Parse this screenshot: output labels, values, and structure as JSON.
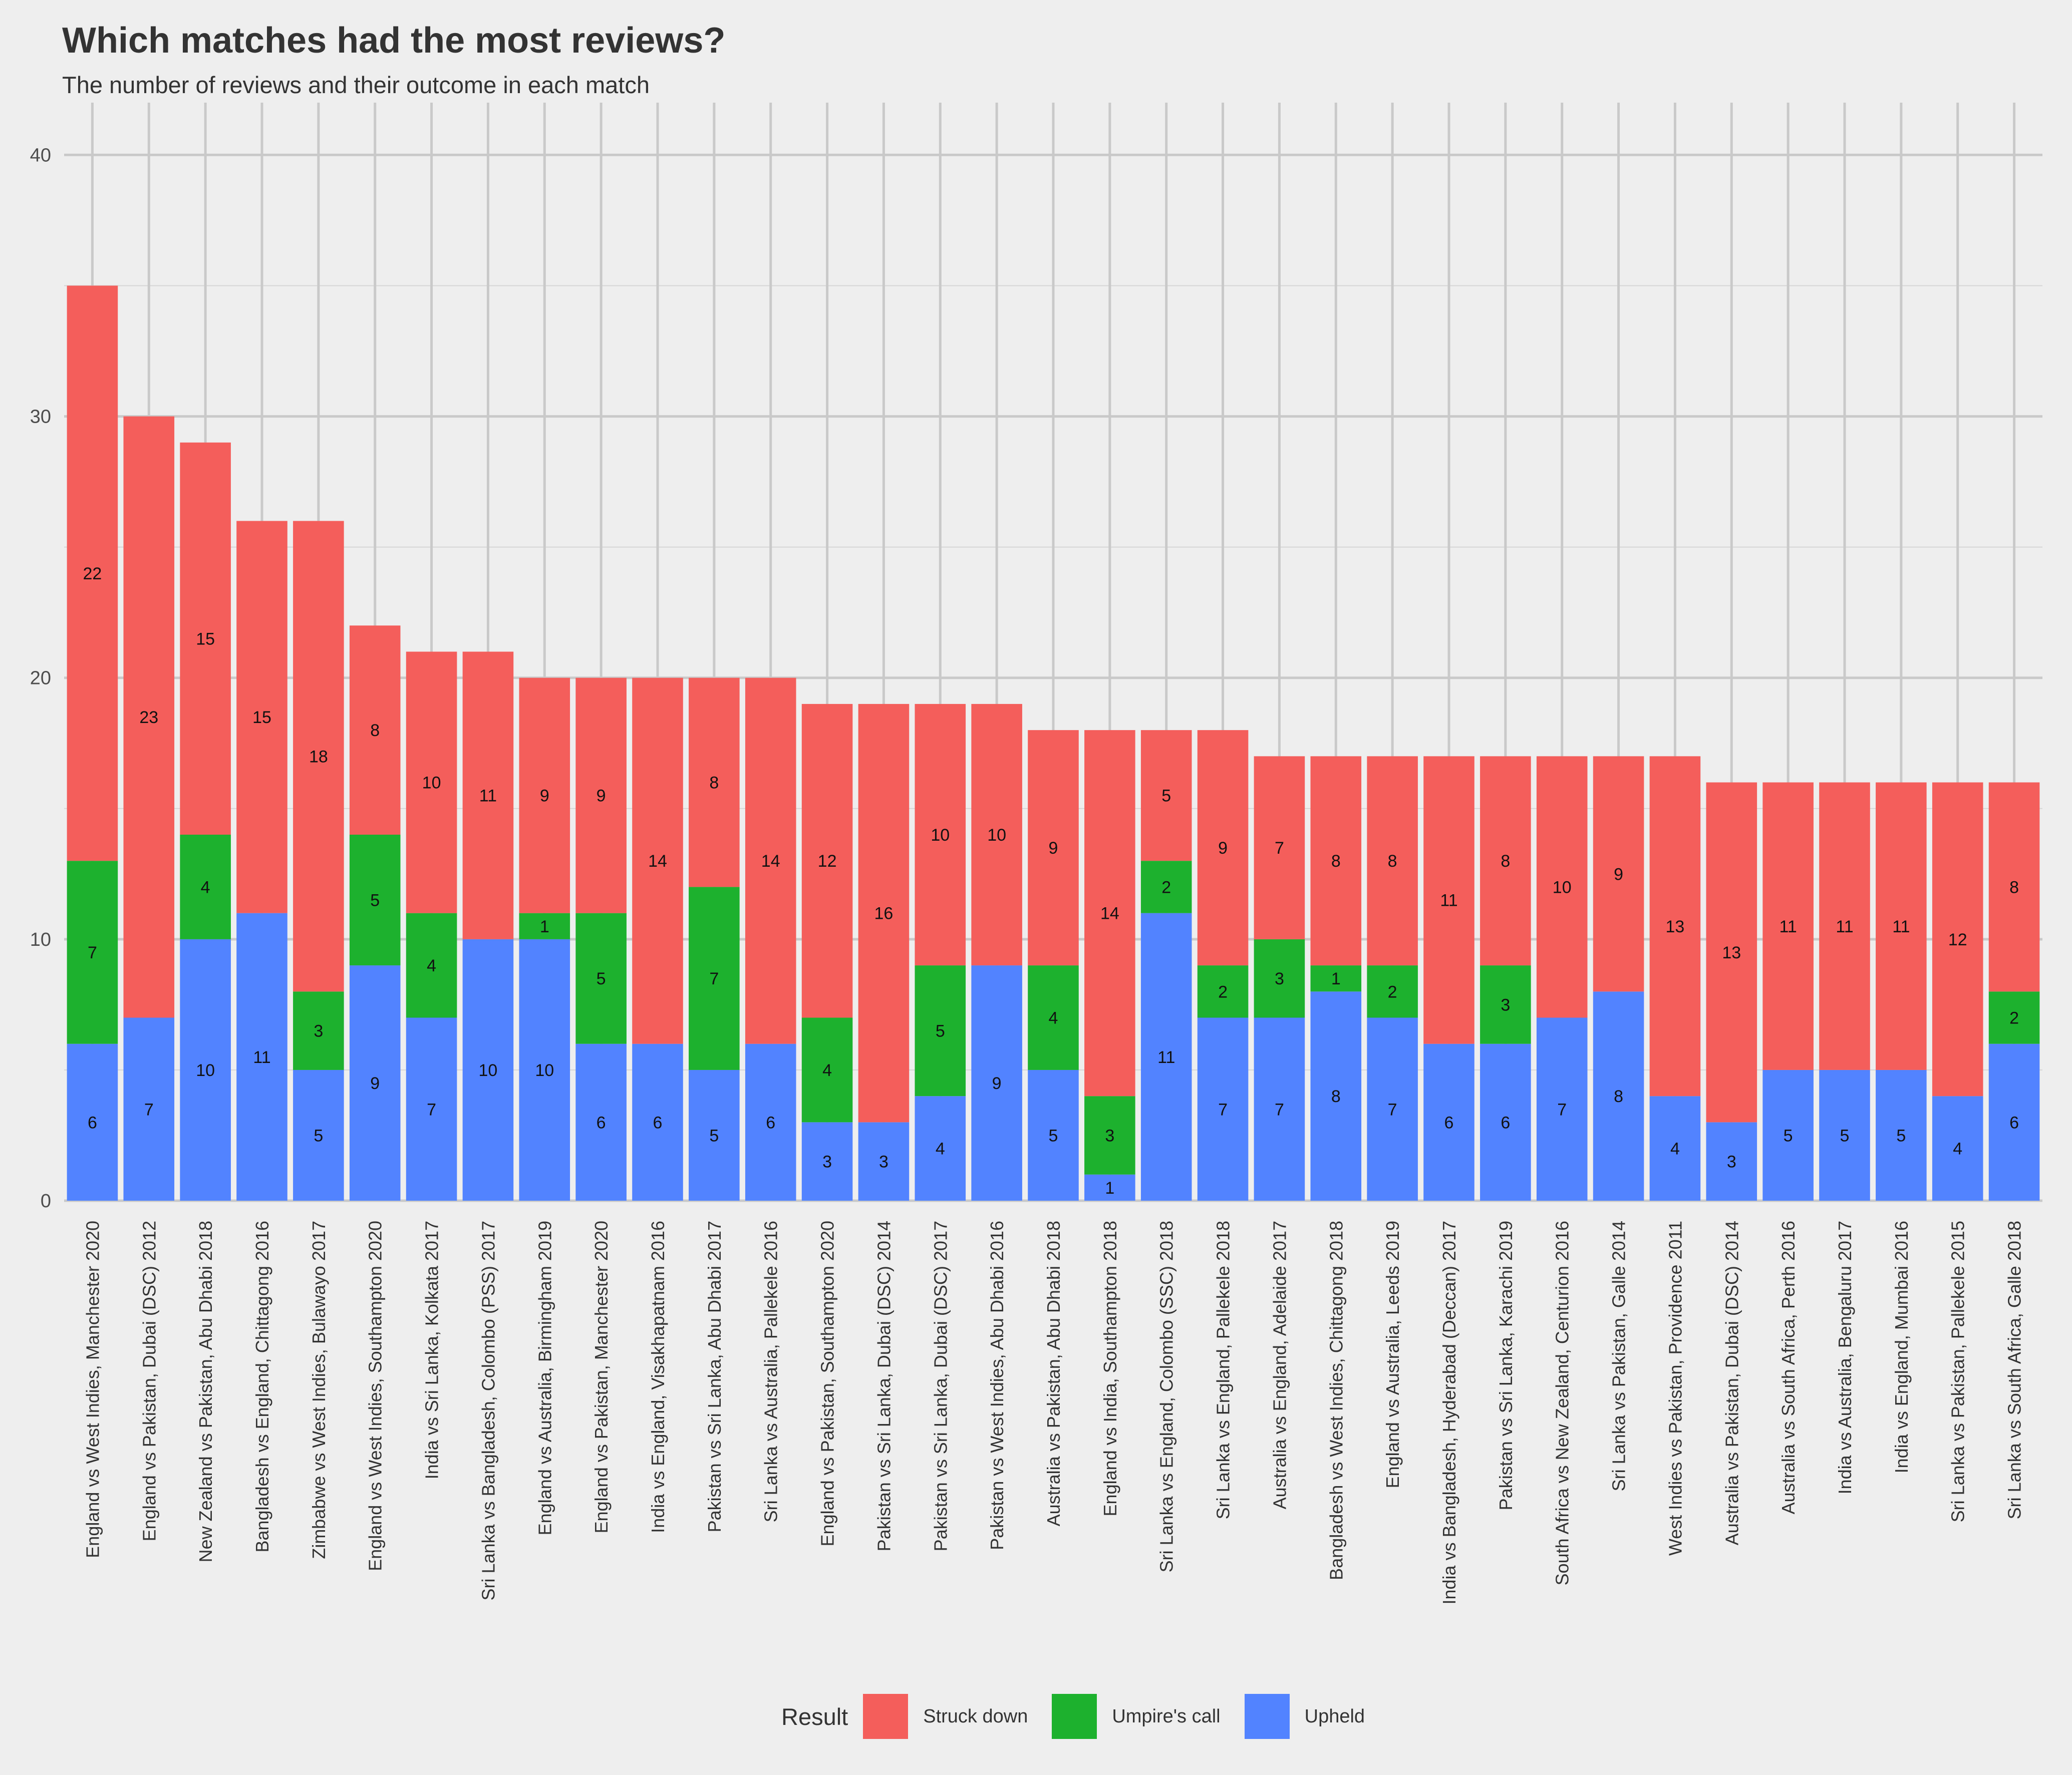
{
  "chart_data": {
    "type": "bar",
    "stacked": true,
    "title": "Which matches had the most reviews?",
    "subtitle": "The number of reviews and their outcome in each match",
    "xlabel": "",
    "ylabel": "",
    "ylim": [
      0,
      42
    ],
    "yticks": [
      0,
      10,
      20,
      30,
      40
    ],
    "grid": true,
    "legend_title": "Result",
    "legend_position": "bottom",
    "categories": [
      "England vs West Indies, Manchester 2020",
      "England vs Pakistan, Dubai (DSC) 2012",
      "New Zealand vs Pakistan, Abu Dhabi 2018",
      "Bangladesh vs England, Chittagong 2016",
      "Zimbabwe vs West Indies, Bulawayo 2017",
      "England vs West Indies, Southampton 2020",
      "India vs Sri Lanka, Kolkata 2017",
      "Sri Lanka vs Bangladesh, Colombo (PSS) 2017",
      "England vs Australia, Birmingham 2019",
      "England vs Pakistan, Manchester 2020",
      "India vs England, Visakhapatnam 2016",
      "Pakistan vs Sri Lanka, Abu Dhabi 2017",
      "Sri Lanka vs Australia, Pallekele 2016",
      "England vs Pakistan, Southampton 2020",
      "Pakistan vs Sri Lanka, Dubai (DSC) 2014",
      "Pakistan vs Sri Lanka, Dubai (DSC) 2017",
      "Pakistan vs West Indies, Abu Dhabi 2016",
      "Australia vs Pakistan, Abu Dhabi 2018",
      "England vs India, Southampton 2018",
      "Sri Lanka vs England, Colombo (SSC) 2018",
      "Sri Lanka vs England, Pallekele 2018",
      "Australia vs England, Adelaide 2017",
      "Bangladesh vs West Indies, Chittagong 2018",
      "England vs Australia, Leeds 2019",
      "India vs Bangladesh, Hyderabad (Deccan) 2017",
      "Pakistan vs Sri Lanka, Karachi 2019",
      "South Africa vs New Zealand, Centurion 2016",
      "Sri Lanka vs Pakistan, Galle 2014",
      "West Indies vs Pakistan, Providence 2011",
      "Australia vs Pakistan, Dubai (DSC) 2014",
      "Australia vs South Africa, Perth 2016",
      "India vs Australia, Bengaluru 2017",
      "India vs England, Mumbai 2016",
      "Sri Lanka vs Pakistan, Pallekele 2015",
      "Sri Lanka vs South Africa, Galle 2018"
    ],
    "series": [
      {
        "name": "Upheld",
        "color": "#5283ff",
        "values": [
          6,
          7,
          10,
          11,
          5,
          9,
          7,
          10,
          10,
          6,
          6,
          5,
          6,
          3,
          3,
          4,
          9,
          5,
          1,
          11,
          7,
          7,
          8,
          7,
          6,
          6,
          7,
          8,
          4,
          3,
          5,
          5,
          5,
          4,
          6
        ]
      },
      {
        "name": "Umpire's call",
        "color": "#1db12e",
        "values": [
          7,
          0,
          4,
          0,
          3,
          5,
          4,
          0,
          1,
          5,
          0,
          7,
          0,
          4,
          0,
          5,
          0,
          4,
          3,
          2,
          2,
          3,
          1,
          2,
          0,
          3,
          0,
          0,
          0,
          0,
          0,
          0,
          0,
          0,
          2
        ]
      },
      {
        "name": "Struck down",
        "color": "#f45e5b",
        "values": [
          22,
          23,
          15,
          15,
          18,
          8,
          10,
          11,
          9,
          9,
          14,
          8,
          14,
          12,
          16,
          10,
          10,
          9,
          14,
          5,
          9,
          7,
          8,
          8,
          11,
          8,
          10,
          9,
          13,
          13,
          11,
          11,
          11,
          12,
          8
        ]
      }
    ]
  }
}
